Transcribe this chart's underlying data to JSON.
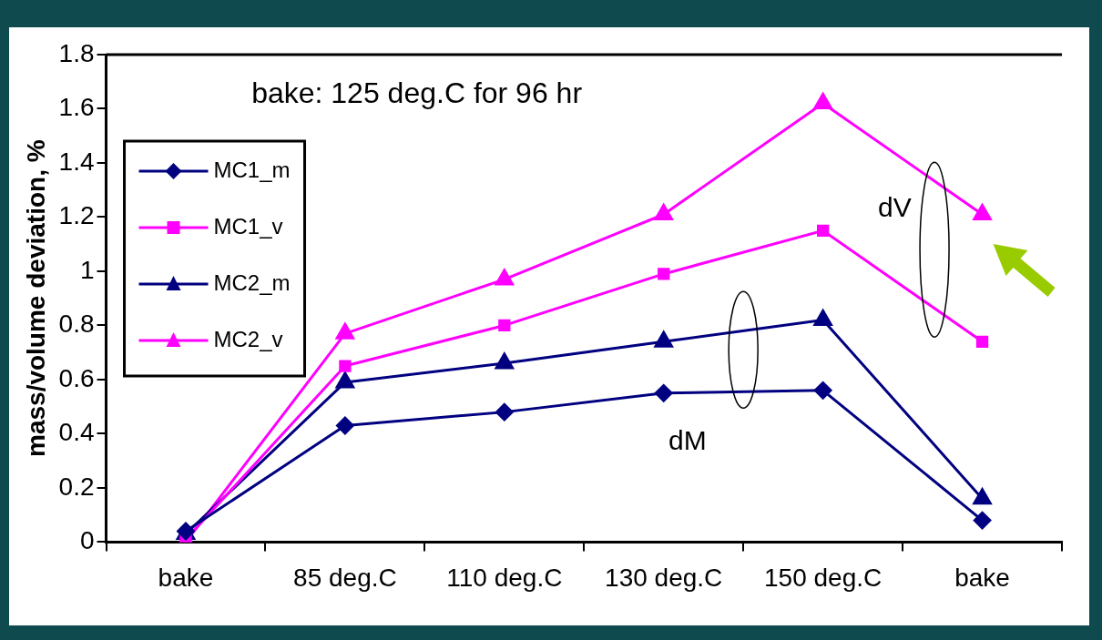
{
  "chart_data": {
    "type": "line",
    "ylabel": "mass/volume deviation, %",
    "categories": [
      "bake",
      "85 deg.C",
      "110 deg.C",
      "130 deg.C",
      "150 deg.C",
      "bake"
    ],
    "series": [
      {
        "name": "MC1_m",
        "color": "#000080",
        "marker": "diamond",
        "values": [
          0.04,
          0.43,
          0.48,
          0.55,
          0.56,
          0.08
        ]
      },
      {
        "name": "MC1_v",
        "color": "#ff00ff",
        "marker": "square",
        "values": [
          0.01,
          0.65,
          0.8,
          0.99,
          1.15,
          0.74
        ]
      },
      {
        "name": "MC2_m",
        "color": "#000080",
        "marker": "triangle",
        "values": [
          0.03,
          0.59,
          0.66,
          0.74,
          0.82,
          0.16
        ]
      },
      {
        "name": "MC2_v",
        "color": "#ff00ff",
        "marker": "triangle",
        "values": [
          0,
          0.77,
          0.97,
          1.21,
          1.62,
          1.21
        ]
      }
    ],
    "ylim": [
      0,
      1.8
    ],
    "yticks": [
      0,
      0.2,
      0.4,
      0.6,
      0.8,
      1,
      1.2,
      1.4,
      1.6,
      1.8
    ],
    "grid": false,
    "legend": "top left",
    "line_style": "solid",
    "annotations": [
      "bake: 125 deg.C for 96 hr",
      "dV",
      "dM"
    ]
  }
}
